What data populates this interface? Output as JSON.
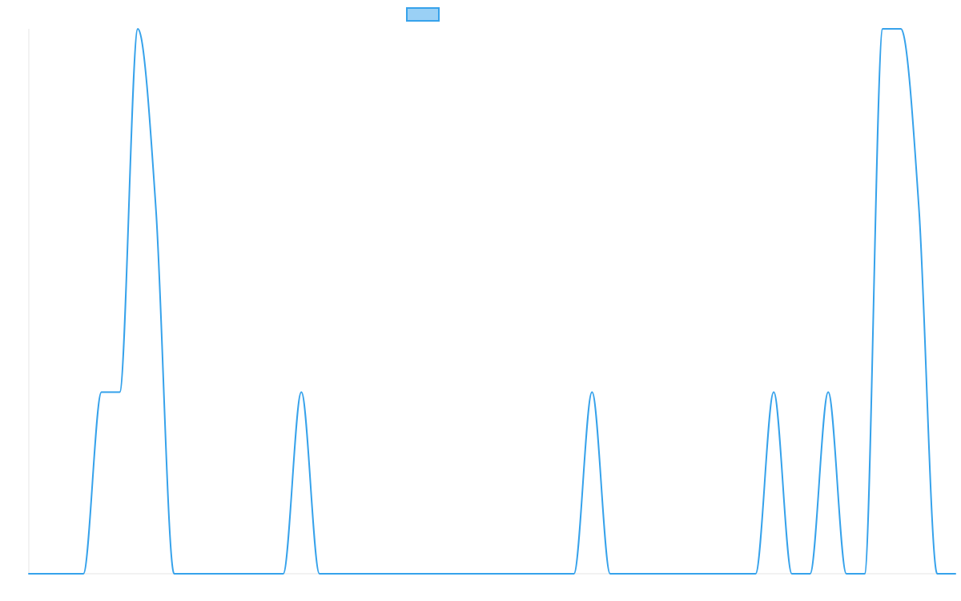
{
  "chart_data": {
    "type": "line",
    "title": "",
    "xlabel": "",
    "ylabel": "",
    "xlim": [
      0,
      51
    ],
    "ylim": [
      0,
      3
    ],
    "grid": false,
    "legend": {
      "placement": "top-center",
      "swatch_fill": "#9ad0f5",
      "swatch_stroke": "#36a2eb"
    },
    "series": [
      {
        "color": "#36a2eb",
        "x": [
          0,
          1,
          2,
          3,
          4,
          5,
          6,
          7,
          8,
          9,
          10,
          11,
          12,
          13,
          14,
          15,
          16,
          17,
          18,
          19,
          20,
          21,
          22,
          23,
          24,
          25,
          26,
          27,
          28,
          29,
          30,
          31,
          32,
          33,
          34,
          35,
          36,
          37,
          38,
          39,
          40,
          41,
          42,
          43,
          44,
          45,
          46,
          47,
          48,
          49,
          50,
          51
        ],
        "y": [
          0,
          0,
          0,
          0,
          1,
          1,
          3,
          2,
          0,
          0,
          0,
          0,
          0,
          0,
          0,
          1,
          0,
          0,
          0,
          0,
          0,
          0,
          0,
          0,
          0,
          0,
          0,
          0,
          0,
          0,
          0,
          1,
          0,
          0,
          0,
          0,
          0,
          0,
          0,
          0,
          0,
          1,
          0,
          0,
          1,
          0,
          0,
          3,
          3,
          2,
          0,
          0
        ]
      }
    ]
  }
}
